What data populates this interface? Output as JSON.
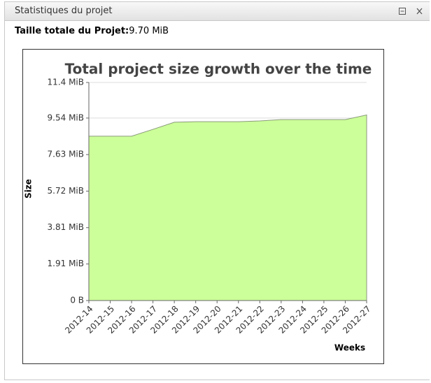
{
  "panel": {
    "title": "Statistiques du projet",
    "summary_label": "Taille totale du Projet:",
    "summary_value": "9.70 MiB"
  },
  "chart_data": {
    "type": "area",
    "title": "Total project size growth over the time",
    "x_label": "Weeks",
    "y_label": "Size",
    "categories": [
      "2012-14",
      "2012-15",
      "2012-16",
      "2012-17",
      "2012-18",
      "2012-19",
      "2012-20",
      "2012-21",
      "2012-22",
      "2012-23",
      "2012-24",
      "2012-25",
      "2012-26",
      "2012-27"
    ],
    "values": [
      8.59,
      8.59,
      8.59,
      8.95,
      9.32,
      9.35,
      9.35,
      9.35,
      9.39,
      9.46,
      9.46,
      9.46,
      9.46,
      9.7
    ],
    "color": "#ccff99",
    "line_color": "#8a9a7a",
    "ylim": [
      0,
      11.4
    ],
    "yticks": [
      {
        "value": 0,
        "label": "0 B"
      },
      {
        "value": 1.91,
        "label": "1.91 MiB"
      },
      {
        "value": 3.81,
        "label": "3.81 MiB"
      },
      {
        "value": 5.72,
        "label": "5.72 MiB"
      },
      {
        "value": 7.63,
        "label": "7.63 MiB"
      },
      {
        "value": 9.54,
        "label": "9.54 MiB"
      },
      {
        "value": 11.4,
        "label": "11.4 MiB"
      }
    ],
    "grid": true
  }
}
